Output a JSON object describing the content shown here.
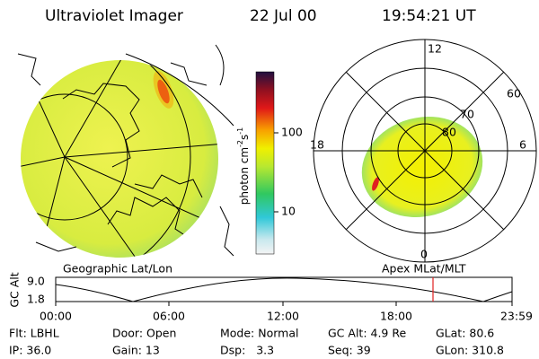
{
  "header": {
    "title": "Ultraviolet Imager",
    "date": "22 Jul 00",
    "time": "19:54:21 UT"
  },
  "colorbar": {
    "label": {
      "text": "photon cm",
      "exp1": "-2",
      "unit2": "s",
      "exp2": "-1"
    },
    "ticks": [
      "100",
      "10"
    ]
  },
  "polar": {
    "mlt_labels": [
      "12",
      "18",
      "6",
      "0"
    ],
    "mlat_labels": [
      "60",
      "70",
      "80"
    ]
  },
  "panels": {
    "left": "Geographic Lat/Lon",
    "right": "Apex MLat/MLT"
  },
  "altitude_plot": {
    "ylabel": "GC Alt",
    "yticks": [
      "9.0",
      "1.8"
    ],
    "xticks": [
      "00:00",
      "06:00",
      "12:00",
      "18:00",
      "23:59"
    ]
  },
  "footer": {
    "rows": [
      [
        "Flt: LBHL",
        "Door: Open",
        "Mode: Normal",
        "GC Alt: 4.9 Re",
        "GLat: 80.6"
      ],
      [
        "IP: 36.0",
        "Gain: 13",
        "Dsp:   3.3",
        "Seq: 39",
        "GLon: 310.8"
      ]
    ]
  }
}
